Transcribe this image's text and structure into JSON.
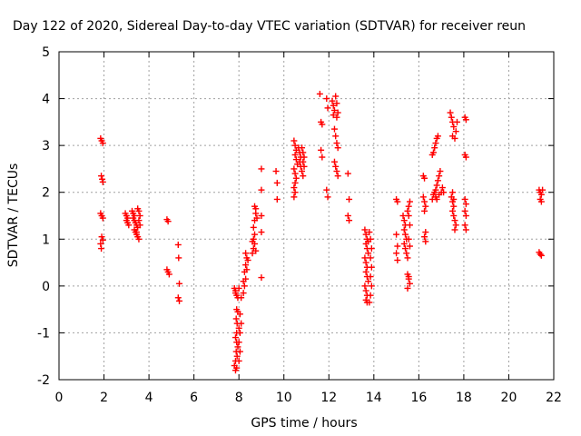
{
  "chart_data": {
    "type": "scatter",
    "title": "Day 122 of 2020, Sidereal Day-to-day VTEC variation (SDTVAR) for receiver reun",
    "xlabel": "GPS time / hours",
    "ylabel": "SDTVAR / TECUs",
    "xlim": [
      0,
      22
    ],
    "ylim": [
      -2,
      5
    ],
    "xticks": [
      0,
      2,
      4,
      6,
      8,
      10,
      12,
      14,
      16,
      18,
      20,
      22
    ],
    "yticks": [
      -2,
      -1,
      0,
      1,
      2,
      3,
      4,
      5
    ],
    "grid": true,
    "marker": "+",
    "series": [
      {
        "name": "SDTVAR",
        "color": "#ff0000",
        "points": [
          [
            1.85,
            3.15
          ],
          [
            1.9,
            3.1
          ],
          [
            1.95,
            3.05
          ],
          [
            1.88,
            2.35
          ],
          [
            1.92,
            2.28
          ],
          [
            1.95,
            2.22
          ],
          [
            1.85,
            1.55
          ],
          [
            1.9,
            1.5
          ],
          [
            1.95,
            1.45
          ],
          [
            1.9,
            1.05
          ],
          [
            1.95,
            0.98
          ],
          [
            1.85,
            0.9
          ],
          [
            1.88,
            0.8
          ],
          [
            2.95,
            1.55
          ],
          [
            3.0,
            1.5
          ],
          [
            3.05,
            1.45
          ],
          [
            3.0,
            1.4
          ],
          [
            3.05,
            1.35
          ],
          [
            3.1,
            1.3
          ],
          [
            3.25,
            1.6
          ],
          [
            3.3,
            1.55
          ],
          [
            3.35,
            1.5
          ],
          [
            3.3,
            1.45
          ],
          [
            3.35,
            1.4
          ],
          [
            3.4,
            1.35
          ],
          [
            3.45,
            1.3
          ],
          [
            3.35,
            1.2
          ],
          [
            3.4,
            1.15
          ],
          [
            3.45,
            1.1
          ],
          [
            3.5,
            1.05
          ],
          [
            3.55,
            1.0
          ],
          [
            3.5,
            1.65
          ],
          [
            3.55,
            1.6
          ],
          [
            3.6,
            1.5
          ],
          [
            3.55,
            1.4
          ],
          [
            3.6,
            1.3
          ],
          [
            3.5,
            1.25
          ],
          [
            3.45,
            1.15
          ],
          [
            4.8,
            1.42
          ],
          [
            4.85,
            1.38
          ],
          [
            4.8,
            0.35
          ],
          [
            4.85,
            0.3
          ],
          [
            4.9,
            0.25
          ],
          [
            5.3,
            0.88
          ],
          [
            5.32,
            0.6
          ],
          [
            5.35,
            0.05
          ],
          [
            5.3,
            -0.25
          ],
          [
            5.35,
            -0.32
          ],
          [
            7.8,
            -0.05
          ],
          [
            7.85,
            -0.1
          ],
          [
            7.9,
            -0.2
          ],
          [
            7.95,
            -0.25
          ],
          [
            7.85,
            -0.15
          ],
          [
            8.0,
            -0.05
          ],
          [
            7.9,
            -0.5
          ],
          [
            7.95,
            -0.55
          ],
          [
            7.88,
            -0.7
          ],
          [
            7.92,
            -0.8
          ],
          [
            8.0,
            -0.9
          ],
          [
            7.9,
            -1.0
          ],
          [
            7.85,
            -1.1
          ],
          [
            7.9,
            -1.2
          ],
          [
            7.95,
            -1.3
          ],
          [
            7.88,
            -1.4
          ],
          [
            7.92,
            -1.5
          ],
          [
            7.85,
            -1.6
          ],
          [
            7.8,
            -1.7
          ],
          [
            7.85,
            -1.8
          ],
          [
            7.9,
            -1.75
          ],
          [
            8.0,
            -1.6
          ],
          [
            8.05,
            -1.4
          ],
          [
            8.0,
            -1.2
          ],
          [
            8.05,
            -1.0
          ],
          [
            8.1,
            -0.8
          ],
          [
            8.05,
            -0.6
          ],
          [
            8.1,
            -0.25
          ],
          [
            8.2,
            -0.15
          ],
          [
            8.25,
            0.0
          ],
          [
            8.3,
            0.15
          ],
          [
            8.25,
            0.3
          ],
          [
            8.3,
            0.45
          ],
          [
            8.35,
            0.6
          ],
          [
            8.3,
            0.7
          ],
          [
            8.4,
            0.55
          ],
          [
            8.35,
            0.35
          ],
          [
            8.2,
            0.1
          ],
          [
            8.6,
            0.7
          ],
          [
            8.65,
            0.8
          ],
          [
            8.7,
            0.9
          ],
          [
            8.65,
            1.0
          ],
          [
            8.7,
            1.1
          ],
          [
            8.6,
            0.95
          ],
          [
            8.65,
            1.25
          ],
          [
            8.7,
            1.4
          ],
          [
            8.75,
            1.55
          ],
          [
            8.7,
            1.7
          ],
          [
            8.75,
            1.65
          ],
          [
            8.8,
            1.45
          ],
          [
            8.75,
            0.75
          ],
          [
            9.0,
            2.5
          ],
          [
            9.0,
            2.05
          ],
          [
            9.0,
            1.5
          ],
          [
            9.0,
            1.15
          ],
          [
            9.0,
            0.18
          ],
          [
            9.65,
            2.45
          ],
          [
            9.7,
            2.2
          ],
          [
            9.7,
            1.85
          ],
          [
            10.45,
            3.1
          ],
          [
            10.5,
            3.0
          ],
          [
            10.55,
            2.9
          ],
          [
            10.5,
            2.8
          ],
          [
            10.55,
            2.7
          ],
          [
            10.6,
            2.6
          ],
          [
            10.45,
            2.5
          ],
          [
            10.5,
            2.4
          ],
          [
            10.55,
            2.3
          ],
          [
            10.5,
            2.2
          ],
          [
            10.45,
            2.1
          ],
          [
            10.5,
            2.0
          ],
          [
            10.45,
            1.9
          ],
          [
            10.65,
            2.95
          ],
          [
            10.7,
            2.85
          ],
          [
            10.75,
            2.75
          ],
          [
            10.7,
            2.65
          ],
          [
            10.75,
            2.55
          ],
          [
            10.8,
            2.95
          ],
          [
            10.85,
            2.85
          ],
          [
            10.9,
            2.75
          ],
          [
            10.85,
            2.65
          ],
          [
            10.9,
            2.55
          ],
          [
            10.8,
            2.45
          ],
          [
            10.85,
            2.35
          ],
          [
            11.6,
            4.1
          ],
          [
            11.65,
            3.5
          ],
          [
            11.7,
            3.45
          ],
          [
            11.65,
            2.9
          ],
          [
            11.7,
            2.75
          ],
          [
            11.9,
            4.0
          ],
          [
            11.95,
            3.8
          ],
          [
            11.9,
            2.05
          ],
          [
            11.95,
            1.9
          ],
          [
            12.15,
            3.95
          ],
          [
            12.2,
            3.85
          ],
          [
            12.25,
            3.75
          ],
          [
            12.2,
            3.65
          ],
          [
            12.3,
            4.05
          ],
          [
            12.35,
            3.9
          ],
          [
            12.4,
            3.7
          ],
          [
            12.35,
            3.6
          ],
          [
            12.25,
            3.35
          ],
          [
            12.3,
            3.2
          ],
          [
            12.35,
            3.05
          ],
          [
            12.4,
            2.95
          ],
          [
            12.25,
            2.65
          ],
          [
            12.3,
            2.55
          ],
          [
            12.35,
            2.45
          ],
          [
            12.4,
            2.35
          ],
          [
            12.85,
            2.4
          ],
          [
            12.9,
            1.85
          ],
          [
            12.85,
            1.5
          ],
          [
            12.9,
            1.4
          ],
          [
            13.6,
            1.2
          ],
          [
            13.65,
            1.1
          ],
          [
            13.7,
            1.0
          ],
          [
            13.65,
            0.9
          ],
          [
            13.7,
            0.8
          ],
          [
            13.75,
            0.7
          ],
          [
            13.6,
            0.6
          ],
          [
            13.65,
            0.5
          ],
          [
            13.7,
            0.4
          ],
          [
            13.65,
            0.3
          ],
          [
            13.7,
            0.2
          ],
          [
            13.75,
            0.1
          ],
          [
            13.6,
            0.0
          ],
          [
            13.65,
            -0.1
          ],
          [
            13.7,
            -0.2
          ],
          [
            13.65,
            -0.3
          ],
          [
            13.7,
            -0.35
          ],
          [
            13.8,
            1.15
          ],
          [
            13.85,
            1.0
          ],
          [
            13.9,
            0.8
          ],
          [
            13.85,
            0.6
          ],
          [
            13.9,
            0.4
          ],
          [
            13.85,
            0.2
          ],
          [
            13.9,
            0.0
          ],
          [
            13.85,
            -0.2
          ],
          [
            13.8,
            -0.35
          ],
          [
            13.75,
            0.95
          ],
          [
            15.0,
            1.85
          ],
          [
            15.05,
            1.8
          ],
          [
            15.0,
            1.1
          ],
          [
            15.05,
            0.85
          ],
          [
            15.0,
            0.7
          ],
          [
            15.05,
            0.55
          ],
          [
            15.3,
            1.5
          ],
          [
            15.35,
            1.4
          ],
          [
            15.4,
            1.3
          ],
          [
            15.35,
            1.2
          ],
          [
            15.4,
            1.1
          ],
          [
            15.45,
            1.0
          ],
          [
            15.35,
            0.9
          ],
          [
            15.4,
            0.8
          ],
          [
            15.45,
            0.7
          ],
          [
            15.5,
            0.6
          ],
          [
            15.5,
            1.6
          ],
          [
            15.55,
            1.7
          ],
          [
            15.6,
            1.8
          ],
          [
            15.55,
            1.5
          ],
          [
            15.6,
            1.3
          ],
          [
            15.55,
            1.0
          ],
          [
            15.6,
            0.85
          ],
          [
            15.5,
            0.25
          ],
          [
            15.55,
            0.15
          ],
          [
            15.6,
            0.05
          ],
          [
            15.5,
            -0.05
          ],
          [
            15.55,
            0.2
          ],
          [
            16.2,
            2.35
          ],
          [
            16.25,
            2.3
          ],
          [
            16.2,
            1.9
          ],
          [
            16.25,
            1.8
          ],
          [
            16.3,
            1.7
          ],
          [
            16.25,
            1.6
          ],
          [
            16.3,
            1.15
          ],
          [
            16.25,
            1.05
          ],
          [
            16.3,
            0.95
          ],
          [
            16.6,
            2.8
          ],
          [
            16.65,
            2.85
          ],
          [
            16.7,
            2.95
          ],
          [
            16.75,
            3.05
          ],
          [
            16.8,
            3.15
          ],
          [
            16.85,
            3.2
          ],
          [
            16.6,
            1.85
          ],
          [
            16.65,
            1.95
          ],
          [
            16.7,
            2.0
          ],
          [
            16.75,
            2.05
          ],
          [
            16.8,
            2.15
          ],
          [
            16.85,
            2.25
          ],
          [
            16.9,
            2.35
          ],
          [
            16.95,
            2.45
          ],
          [
            16.75,
            1.9
          ],
          [
            16.8,
            1.85
          ],
          [
            16.9,
            1.95
          ],
          [
            17.0,
            2.0
          ],
          [
            17.05,
            2.1
          ],
          [
            17.1,
            2.0
          ],
          [
            17.4,
            3.7
          ],
          [
            17.45,
            3.6
          ],
          [
            17.5,
            3.5
          ],
          [
            17.55,
            3.4
          ],
          [
            17.5,
            3.2
          ],
          [
            17.6,
            3.15
          ],
          [
            17.65,
            3.3
          ],
          [
            17.7,
            3.5
          ],
          [
            17.45,
            1.9
          ],
          [
            17.5,
            1.8
          ],
          [
            17.55,
            1.7
          ],
          [
            17.5,
            1.6
          ],
          [
            17.55,
            1.5
          ],
          [
            17.6,
            1.4
          ],
          [
            17.65,
            1.3
          ],
          [
            17.6,
            1.2
          ],
          [
            17.5,
            2.0
          ],
          [
            17.55,
            1.85
          ],
          [
            18.05,
            3.6
          ],
          [
            18.1,
            3.55
          ],
          [
            18.05,
            2.8
          ],
          [
            18.1,
            2.75
          ],
          [
            18.05,
            1.85
          ],
          [
            18.1,
            1.75
          ],
          [
            18.05,
            1.6
          ],
          [
            18.1,
            1.5
          ],
          [
            18.05,
            1.3
          ],
          [
            18.1,
            1.2
          ],
          [
            21.35,
            2.05
          ],
          [
            21.4,
            2.0
          ],
          [
            21.45,
            1.95
          ],
          [
            21.4,
            1.85
          ],
          [
            21.45,
            1.8
          ],
          [
            21.5,
            2.05
          ],
          [
            21.35,
            0.72
          ],
          [
            21.4,
            0.68
          ],
          [
            21.45,
            0.65
          ]
        ]
      }
    ]
  }
}
